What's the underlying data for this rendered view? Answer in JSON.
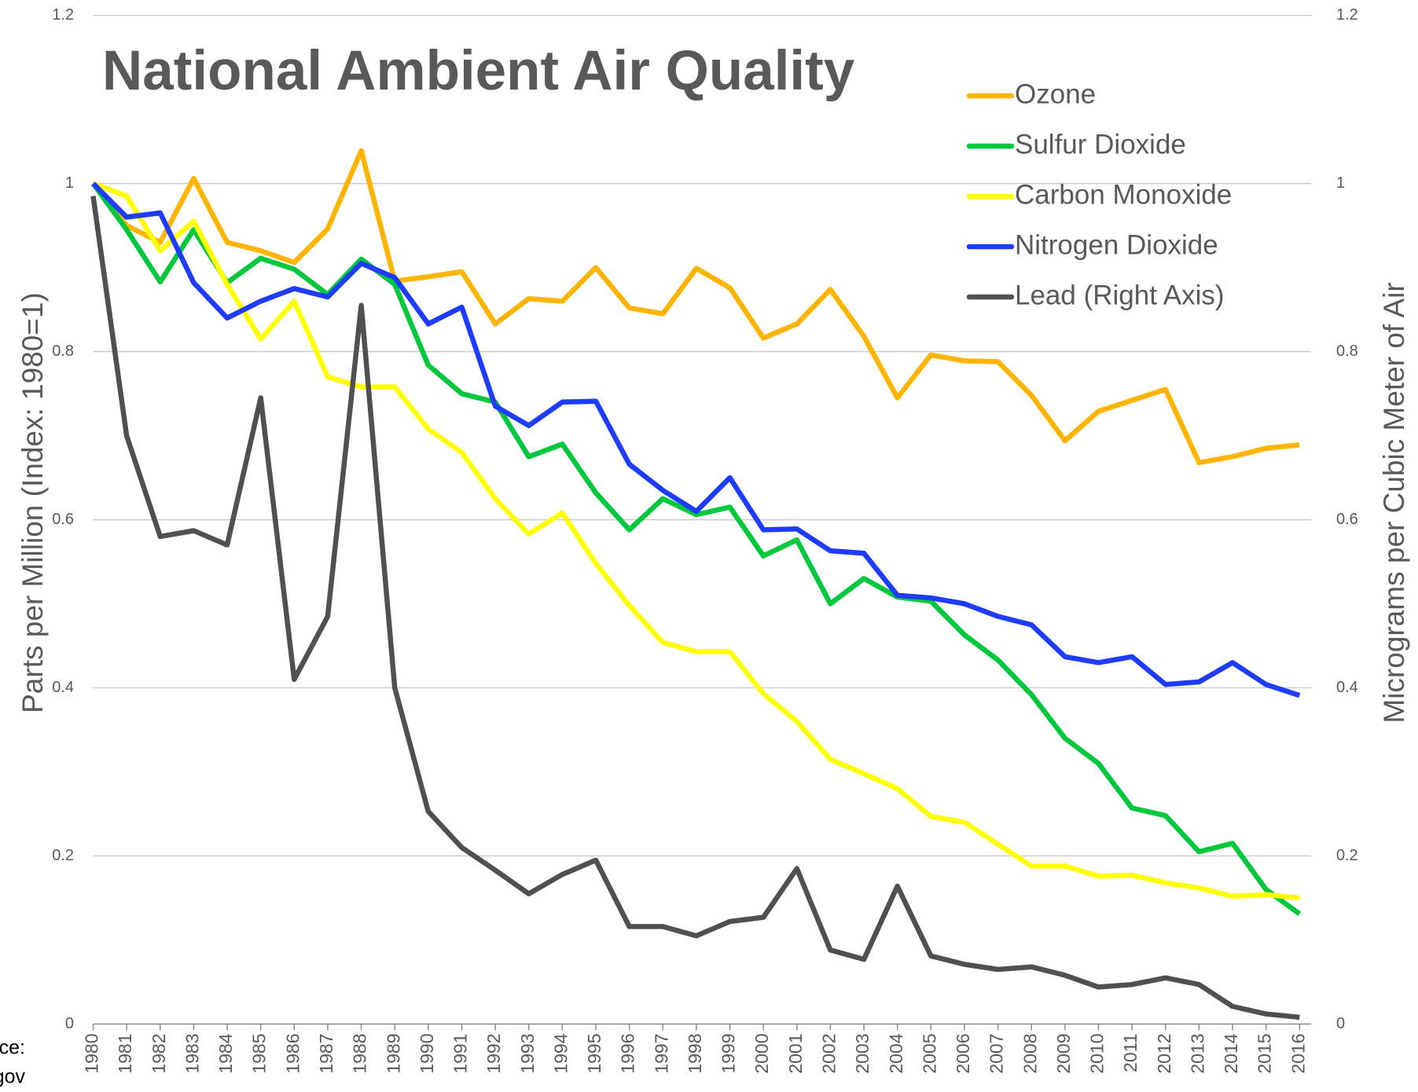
{
  "chart_data": {
    "type": "line",
    "title": "National Ambient Air Quality",
    "y_label": "Parts per Million (Index: 1980=1)",
    "y2_label": "Micrograms per Cubic Meter of Air",
    "source": [
      "ce:",
      "gov"
    ],
    "categories": [
      "1980",
      "1981",
      "1982",
      "1983",
      "1984",
      "1985",
      "1986",
      "1987",
      "1988",
      "1989",
      "1990",
      "1991",
      "1992",
      "1993",
      "1994",
      "1995",
      "1996",
      "1997",
      "1998",
      "1999",
      "2000",
      "2001",
      "2002",
      "2003",
      "2004",
      "2005",
      "2006",
      "2007",
      "2008",
      "2009",
      "2010",
      "2011",
      "2012",
      "2013",
      "2014",
      "2015",
      "2016"
    ],
    "ylim": [
      0,
      1.2
    ],
    "yticks": [
      0,
      0.2,
      0.4,
      0.6,
      0.8,
      1,
      1.2
    ],
    "y2lim": [
      0,
      1.2
    ],
    "y2ticks": [
      0,
      0.2,
      0.4,
      0.6,
      0.8,
      1,
      1.2
    ],
    "grid": true,
    "legend": "upper right",
    "series": [
      {
        "name": "Ozone",
        "color": "#ffb400",
        "values": [
          1.0,
          0.95,
          0.93,
          1.006,
          0.93,
          0.92,
          0.906,
          0.946,
          1.039,
          0.884,
          0.889,
          0.895,
          0.833,
          0.863,
          0.86,
          0.9,
          0.852,
          0.845,
          0.899,
          0.876,
          0.816,
          0.833,
          0.874,
          0.818,
          0.745,
          0.796,
          0.789,
          0.788,
          0.748,
          0.694,
          0.729,
          0.742,
          0.755,
          0.668,
          0.675,
          0.685,
          0.689
        ]
      },
      {
        "name": "Sulfur Dioxide",
        "color": "#00c83c",
        "values": [
          1.0,
          0.945,
          0.883,
          0.945,
          0.882,
          0.911,
          0.898,
          0.868,
          0.91,
          0.88,
          0.784,
          0.75,
          0.74,
          0.675,
          0.69,
          0.632,
          0.588,
          0.625,
          0.606,
          0.615,
          0.557,
          0.576,
          0.5,
          0.53,
          0.508,
          0.503,
          0.463,
          0.433,
          0.392,
          0.34,
          0.31,
          0.257,
          0.248,
          0.205,
          0.215,
          0.16,
          0.131
        ]
      },
      {
        "name": "Carbon Monoxide",
        "color": "#ffff00",
        "values": [
          1.0,
          0.985,
          0.92,
          0.955,
          0.88,
          0.815,
          0.86,
          0.77,
          0.758,
          0.758,
          0.708,
          0.68,
          0.625,
          0.583,
          0.608,
          0.548,
          0.498,
          0.454,
          0.443,
          0.443,
          0.393,
          0.36,
          0.315,
          0.298,
          0.28,
          0.247,
          0.24,
          0.214,
          0.188,
          0.188,
          0.176,
          0.177,
          0.168,
          0.162,
          0.152,
          0.154,
          0.15
        ]
      },
      {
        "name": "Nitrogen Dioxide",
        "color": "#1e3cff",
        "values": [
          1.0,
          0.96,
          0.965,
          0.882,
          0.84,
          0.86,
          0.875,
          0.865,
          0.905,
          0.888,
          0.833,
          0.853,
          0.735,
          0.712,
          0.74,
          0.741,
          0.666,
          0.635,
          0.61,
          0.65,
          0.588,
          0.589,
          0.563,
          0.56,
          0.51,
          0.507,
          0.5,
          0.485,
          0.475,
          0.437,
          0.43,
          0.437,
          0.404,
          0.407,
          0.43,
          0.404,
          0.391
        ]
      },
      {
        "name": "Lead (Right Axis)",
        "color": "#505050",
        "axis": "y2",
        "values": [
          0.985,
          0.7,
          0.58,
          0.587,
          0.57,
          0.745,
          0.41,
          0.485,
          0.855,
          0.4,
          0.253,
          0.21,
          0.183,
          0.155,
          0.178,
          0.195,
          0.116,
          0.116,
          0.105,
          0.122,
          0.127,
          0.185,
          0.088,
          0.077,
          0.164,
          0.081,
          0.071,
          0.065,
          0.068,
          0.058,
          0.044,
          0.047,
          0.055,
          0.047,
          0.021,
          0.012,
          0.008
        ]
      }
    ]
  }
}
